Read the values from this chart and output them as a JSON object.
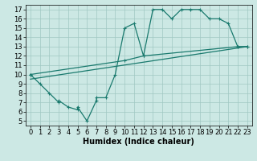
{
  "xlabel": "Humidex (Indice chaleur)",
  "xlim": [
    -0.5,
    23.5
  ],
  "ylim": [
    4.5,
    17.5
  ],
  "xticks": [
    0,
    1,
    2,
    3,
    4,
    5,
    6,
    7,
    8,
    9,
    10,
    11,
    12,
    13,
    14,
    15,
    16,
    17,
    18,
    19,
    20,
    21,
    22,
    23
  ],
  "yticks": [
    5,
    6,
    7,
    8,
    9,
    10,
    11,
    12,
    13,
    14,
    15,
    16,
    17
  ],
  "line_color": "#1a7a6e",
  "bg_color": "#cce8e4",
  "grid_color": "#a0c8c2",
  "line1_x": [
    0,
    1,
    2,
    3,
    3,
    4,
    5,
    5,
    6,
    7,
    7,
    8,
    9,
    10,
    11,
    12,
    13,
    14,
    15,
    16,
    17,
    18,
    19,
    20,
    21,
    22,
    23
  ],
  "line1_y": [
    10.0,
    9.0,
    8.0,
    7.0,
    7.2,
    6.5,
    6.2,
    6.5,
    5.0,
    7.2,
    7.5,
    7.5,
    10.0,
    15.0,
    15.5,
    12.0,
    17.0,
    17.0,
    16.0,
    17.0,
    17.0,
    17.0,
    16.0,
    16.0,
    15.5,
    13.0,
    13.0
  ],
  "line2_x": [
    0,
    10,
    12,
    22,
    23
  ],
  "line2_y": [
    10.0,
    11.5,
    12.0,
    13.0,
    13.0
  ],
  "line3_x": [
    0,
    23
  ],
  "line3_y": [
    9.5,
    13.0
  ],
  "marker": "+",
  "markersize": 3,
  "linewidth": 0.9,
  "tick_fontsize": 6.0
}
